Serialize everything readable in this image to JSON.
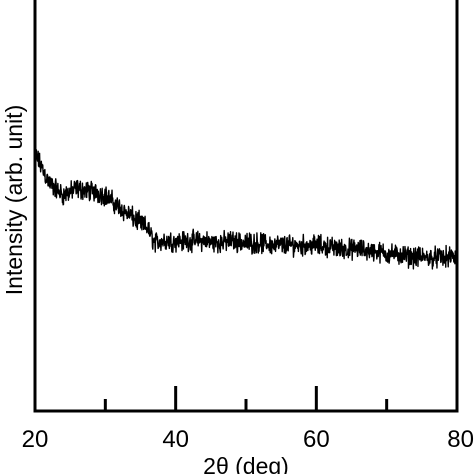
{
  "chart_data": {
    "type": "line",
    "title": "",
    "xlabel": "2θ (deg)",
    "ylabel": "Intensity (arb. unit)",
    "xlim": [
      20,
      80
    ],
    "ylim": [
      0,
      1
    ],
    "x_ticks_major": [
      20,
      40,
      60,
      80
    ],
    "x_ticks_minor": [
      30,
      50,
      70
    ],
    "x_tick_labels": [
      "20",
      "40",
      "60",
      "80"
    ],
    "y_ticks": [],
    "grid": false,
    "legend": "none",
    "line_color": "#000000",
    "series": [
      {
        "x": [
          20,
          22,
          24,
          26,
          28,
          30,
          32,
          34,
          36,
          37,
          38,
          40,
          42,
          44,
          46,
          48,
          50,
          52,
          54,
          56,
          58,
          60,
          62,
          64,
          66,
          68,
          70,
          72,
          74,
          76,
          78,
          80
        ],
        "y": [
          0.62,
          0.55,
          0.52,
          0.535,
          0.53,
          0.52,
          0.49,
          0.465,
          0.44,
          0.405,
          0.41,
          0.41,
          0.41,
          0.41,
          0.405,
          0.41,
          0.405,
          0.405,
          0.4,
          0.4,
          0.4,
          0.4,
          0.395,
          0.39,
          0.39,
          0.385,
          0.38,
          0.375,
          0.37,
          0.37,
          0.37,
          0.37
        ],
        "noise": 0.03
      }
    ]
  }
}
